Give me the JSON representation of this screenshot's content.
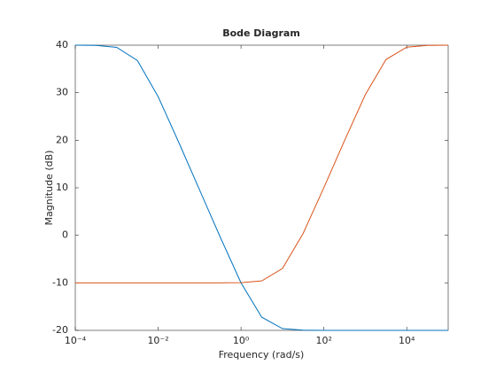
{
  "chart_data": {
    "type": "line",
    "title": "Bode Diagram",
    "x_label": "Frequency  (rad/s)",
    "y_label": "Magnitude (dB)",
    "x_scale": "log",
    "x": [
      0.0001,
      0.0003162,
      0.001,
      0.003162,
      0.01,
      0.03162,
      0.1,
      0.3162,
      1,
      3.162,
      10,
      31.62,
      100,
      316.2,
      1000,
      3162,
      10000,
      31620,
      100000
    ],
    "series": [
      {
        "color": "#0072bd",
        "values": [
          40.0,
          39.95,
          39.54,
          36.76,
          29.17,
          19.5,
          9.54,
          -0.41,
          -10.0,
          -17.22,
          -19.63,
          -19.96,
          -20.0,
          -20.0,
          -20.0,
          -20.0,
          -20.0,
          -20.0,
          -20.0
        ]
      },
      {
        "color": "#d95319",
        "values": [
          -10.0,
          -10.0,
          -10.0,
          -10.0,
          -10.0,
          -10.0,
          -10.0,
          -10.0,
          -9.96,
          -9.59,
          -6.99,
          0.41,
          10.04,
          19.96,
          29.59,
          36.99,
          39.59,
          39.96,
          40.0
        ]
      }
    ],
    "xlim": [
      0.0001,
      100000
    ],
    "xticks": [
      {
        "value": 0.0001,
        "label": "10⁻⁴"
      },
      {
        "value": 0.01,
        "label": "10⁻²"
      },
      {
        "value": 1,
        "label": "10⁰"
      },
      {
        "value": 100,
        "label": "10²"
      },
      {
        "value": 10000,
        "label": "10⁴"
      }
    ],
    "ylim": [
      -20,
      40
    ],
    "yticks": [
      -20,
      -10,
      0,
      10,
      20,
      30,
      40
    ],
    "grid": false
  }
}
